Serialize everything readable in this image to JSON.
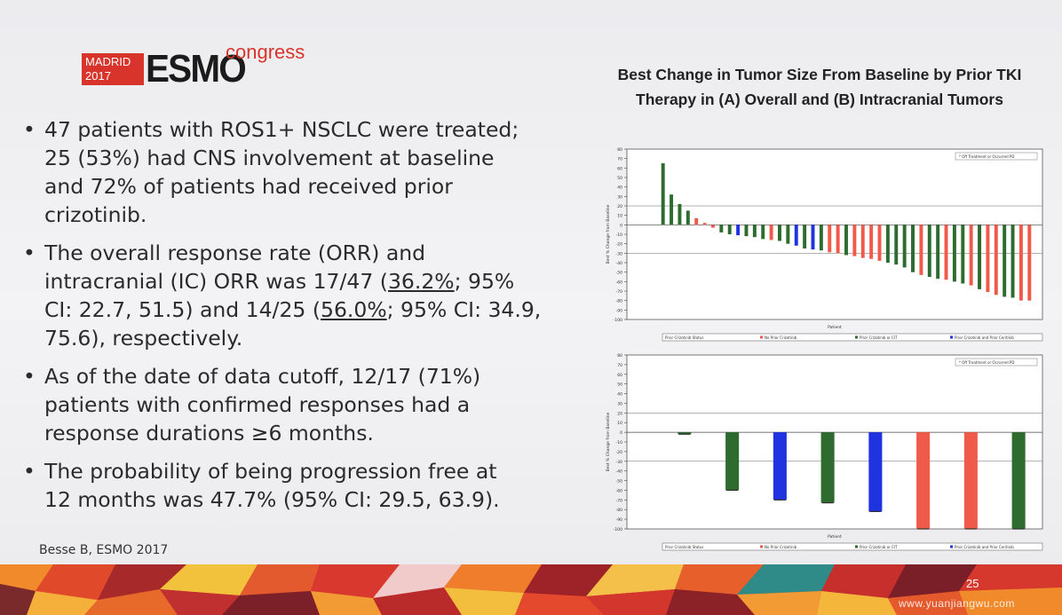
{
  "logo": {
    "city": "MADRID",
    "year": "2017",
    "brand": "ESMO",
    "suffix": "congress"
  },
  "bullets": [
    {
      "lines": [
        "47 patients with ROS1+ NSCLC were treated;",
        "25 (53%) had CNS involvement at baseline",
        "and 72% of patients had received prior",
        "crizotinib."
      ]
    },
    {
      "text1": "The overall response rate (ORR) and",
      "text2": "intracranial (IC) ORR was 17/47 (",
      "u1": "36.2%",
      "text3": "; 95%",
      "text4": "CI: 22.7, 51.5) and 14/25 (",
      "u2": "56.0%",
      "text5": "; 95% CI: 34.9,",
      "text6": "75.6), respectively."
    },
    {
      "lines": [
        "As of the date of data cutoff, 12/17 (71%)",
        "patients with confirmed responses had a",
        "response durations ≥6 months."
      ]
    },
    {
      "lines": [
        "The probability of being progression free at",
        "12 months was 47.7% (95% CI: 29.5, 63.9)."
      ]
    }
  ],
  "bullet_symbol": "•",
  "citation": "Besse B, ESMO 2017",
  "chart_title": "Best Change in Tumor Size From Baseline by Prior TKI Therapy in (A) Overall and (B) Intracranial Tumors",
  "page_number": "25",
  "watermark": "www.yuanjiangwu.com",
  "colors": {
    "green": "#2e6b2e",
    "red": "#f05a4a",
    "blue": "#1f33e0"
  },
  "chart_data": [
    {
      "type": "bar",
      "panel": "A",
      "xlabel": "Patient",
      "ylabel": "Best % Change from Baseline",
      "ylim": [
        -100,
        80
      ],
      "yticks": [
        80,
        70,
        60,
        50,
        40,
        30,
        20,
        10,
        0,
        -10,
        -20,
        -30,
        -40,
        -50,
        -60,
        -70,
        -80,
        -90,
        -100
      ],
      "reference_lines": [
        20,
        -30
      ],
      "legend_inset": "Off Treatment or Occurred PD",
      "legend_bottom": [
        "Prior Crizotinib Status",
        "No Prior Crizotinib",
        "Prior Crizotinib or CIT",
        "Prior Crizotinib and Prior Ceritinib"
      ],
      "values": [
        65,
        32,
        22,
        15,
        7,
        2,
        -3,
        -8,
        -10,
        -11,
        -12,
        -13,
        -15,
        -16,
        -17,
        -20,
        -22,
        -25,
        -26,
        -27,
        -29,
        -30,
        -32,
        -33,
        -35,
        -36,
        -38,
        -40,
        -42,
        -45,
        -50,
        -53,
        -55,
        -57,
        -58,
        -60,
        -62,
        -64,
        -68,
        -71,
        -74,
        -76,
        -77,
        -80,
        -80
      ],
      "colors": [
        "green",
        "green",
        "green",
        "green",
        "red",
        "red",
        "red",
        "green",
        "green",
        "blue",
        "green",
        "green",
        "green",
        "red",
        "green",
        "green",
        "blue",
        "green",
        "blue",
        "green",
        "red",
        "red",
        "green",
        "red",
        "red",
        "red",
        "red",
        "green",
        "green",
        "green",
        "green",
        "red",
        "green",
        "green",
        "red",
        "green",
        "green",
        "red",
        "green",
        "red",
        "red",
        "green",
        "green",
        "red",
        "red"
      ]
    },
    {
      "type": "bar",
      "panel": "B",
      "xlabel": "Patient",
      "ylabel": "Best % Change from Baseline",
      "ylim": [
        -100,
        80
      ],
      "yticks": [
        80,
        70,
        60,
        50,
        40,
        30,
        20,
        10,
        0,
        -10,
        -20,
        -30,
        -40,
        -50,
        -60,
        -70,
        -80,
        -90,
        -100
      ],
      "reference_lines": [
        20,
        -30
      ],
      "legend_inset": "Off Treatment or Occurred PD",
      "legend_bottom": [
        "Prior Crizotinib Status",
        "No Prior Crizotinib",
        "Prior Crizotinib or CIT",
        "Prior Crizotinib and Prior Ceritinib"
      ],
      "values": [
        -2,
        -60,
        -70,
        -73,
        -82,
        -100,
        -100,
        -100
      ],
      "colors": [
        "green",
        "green",
        "blue",
        "green",
        "blue",
        "red",
        "red",
        "green"
      ]
    }
  ]
}
